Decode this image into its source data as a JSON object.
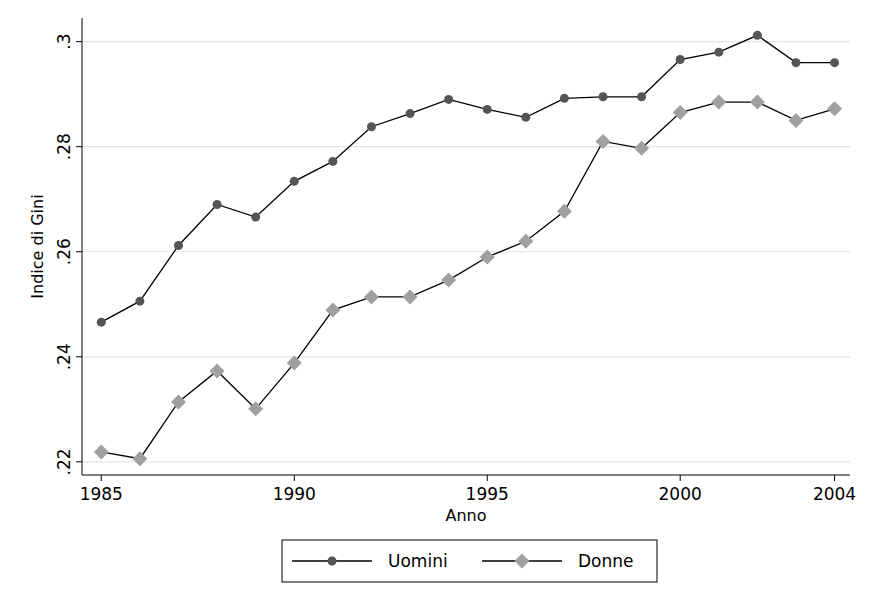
{
  "chart_data": {
    "type": "line",
    "x_label": "Anno",
    "y_label": "Indice di Gini",
    "x": [
      1985,
      1986,
      1987,
      1988,
      1989,
      1990,
      1991,
      1992,
      1993,
      1994,
      1995,
      1996,
      1997,
      1998,
      1999,
      2000,
      2001,
      2002,
      2003,
      2004
    ],
    "series": [
      {
        "name": "Uomini",
        "color": "#555555",
        "marker": "circle",
        "values": [
          0.2466,
          0.2506,
          0.2612,
          0.269,
          0.2666,
          0.2734,
          0.2772,
          0.2838,
          0.2863,
          0.289,
          0.2871,
          0.2856,
          0.2892,
          0.2895,
          0.2895,
          0.2966,
          0.298,
          0.3012,
          0.296,
          0.296
        ]
      },
      {
        "name": "Donne",
        "color": "#a0a0a0",
        "marker": "diamond",
        "values": [
          0.2219,
          0.2206,
          0.2314,
          0.2373,
          0.2301,
          0.2388,
          0.2489,
          0.2514,
          0.2514,
          0.2546,
          0.259,
          0.262,
          0.2677,
          0.281,
          0.2797,
          0.2865,
          0.2885,
          0.2885,
          0.285,
          0.2872
        ]
      }
    ],
    "xlim": [
      1984.5,
      2004.4
    ],
    "ylim": [
      0.2175,
      0.3045
    ],
    "xticks": [
      1985,
      1990,
      1995,
      2000,
      2004
    ],
    "yticks": [
      {
        "value": 0.22,
        "label": ".22"
      },
      {
        "value": 0.24,
        "label": ".24"
      },
      {
        "value": 0.26,
        "label": ".26"
      },
      {
        "value": 0.28,
        "label": ".28"
      },
      {
        "value": 0.3,
        "label": ".3"
      }
    ],
    "grid": true,
    "legend": "bottom"
  }
}
